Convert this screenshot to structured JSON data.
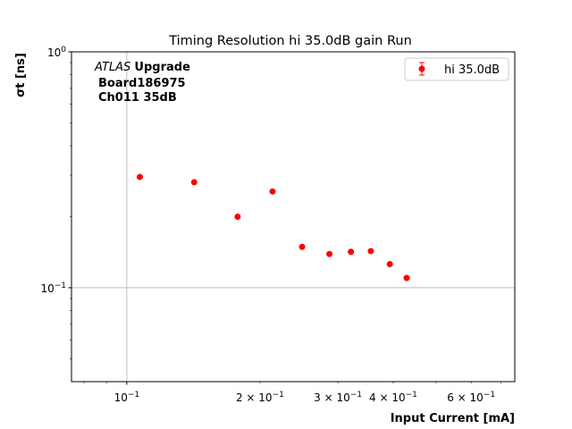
{
  "chart_data": {
    "type": "scatter",
    "title": "Timing Resolution hi 35.0dB gain Run",
    "xlabel": "Input Current [mA]",
    "ylabel": "σt [ns]",
    "xscale": "log",
    "yscale": "log",
    "xlim": [
      0.075,
      0.753
    ],
    "ylim": [
      0.04,
      1.0
    ],
    "grid": "major",
    "x_tick_labels": [
      {
        "value": 0.1,
        "mant": "",
        "exp": "−1",
        "base": "10"
      },
      {
        "value": 0.2,
        "mant": "2 × ",
        "exp": "−1",
        "base": "10"
      },
      {
        "value": 0.3,
        "mant": "3 × ",
        "exp": "−1",
        "base": "10"
      },
      {
        "value": 0.4,
        "mant": "4 × ",
        "exp": "−1",
        "base": "10"
      },
      {
        "value": 0.6,
        "mant": "6 × ",
        "exp": "−1",
        "base": "10"
      }
    ],
    "y_tick_labels": [
      {
        "value": 1.0,
        "base": "10",
        "exp": "0"
      },
      {
        "value": 0.1,
        "base": "10",
        "exp": "−1"
      }
    ],
    "annotation": {
      "italic": "ATLAS",
      "bold": "Upgrade",
      "line2": "Board186975",
      "line3": "Ch011 35dB"
    },
    "legend": {
      "position": "top-right",
      "entries": [
        "hi 35.0dB"
      ]
    },
    "series": [
      {
        "name": "hi 35.0dB",
        "color": "#ff0000",
        "x": [
          0.107,
          0.142,
          0.178,
          0.2135,
          0.249,
          0.287,
          0.321,
          0.356,
          0.393,
          0.429
        ],
        "y": [
          0.295,
          0.28,
          0.2,
          0.256,
          0.149,
          0.139,
          0.142,
          0.143,
          0.126,
          0.11
        ]
      }
    ]
  }
}
